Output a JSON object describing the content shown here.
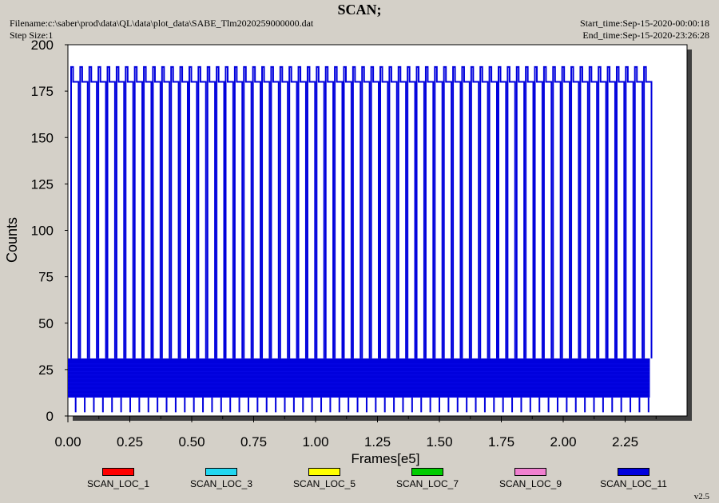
{
  "header": {
    "title": "SCAN;",
    "filename": "Filename:c:\\saber\\prod\\data\\QL\\data\\plot_data\\SABE_Tlm2020259000000.dat",
    "step_size": "Step Size:1",
    "start_time": "Start_time:Sep-15-2020-00:00:18",
    "end_time": "End_time:Sep-15-2020-23:26:28"
  },
  "version": "v2.5",
  "chart_data": {
    "type": "line",
    "title": "SCAN;",
    "xlabel": "Frames[e5]",
    "ylabel": "Counts",
    "xlim": [
      0,
      2.5
    ],
    "ylim": [
      0,
      200
    ],
    "x_ticks": [
      "0.00",
      "0.25",
      "0.50",
      "0.75",
      "1.00",
      "1.25",
      "1.50",
      "1.75",
      "2.00",
      "2.25"
    ],
    "y_ticks": [
      "0",
      "25",
      "50",
      "75",
      "100",
      "125",
      "150",
      "175",
      "200"
    ],
    "data_extent_x": [
      0,
      2.35
    ],
    "dense_band": [
      10,
      31
    ],
    "spike_levels": [
      180,
      188
    ],
    "spike_count": 64,
    "series": [
      {
        "name": "SCAN_LOC_1",
        "color": "#ff0000"
      },
      {
        "name": "SCAN_LOC_3",
        "color": "#22d6f0"
      },
      {
        "name": "SCAN_LOC_5",
        "color": "#ffff00"
      },
      {
        "name": "SCAN_LOC_7",
        "color": "#00cc00"
      },
      {
        "name": "SCAN_LOC_9",
        "color": "#f080d0"
      },
      {
        "name": "SCAN_LOC_11",
        "color": "#0000dd"
      }
    ]
  }
}
